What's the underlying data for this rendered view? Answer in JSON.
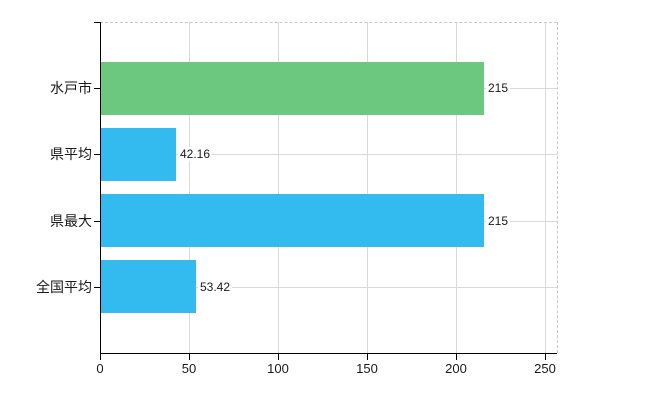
{
  "chart": {
    "background": "#ffffff",
    "axis_color": "#000000",
    "gridline_color": "#d9d9d9",
    "dashed_border_color": "#c8c8c8",
    "text_color": "#1a1a1a"
  },
  "chart_data": {
    "type": "bar",
    "orientation": "horizontal",
    "title": "",
    "categories": [
      "水戸市",
      "県平均",
      "県最大",
      "全国平均"
    ],
    "values": [
      215,
      42.16,
      215,
      53.42
    ],
    "value_labels": [
      "215",
      "42.16",
      "215",
      "53.42"
    ],
    "bar_colors": [
      "#6cc87e",
      "#33bbef",
      "#33bbef",
      "#33bbef"
    ],
    "xlabel": "",
    "ylabel": "",
    "xlim": [
      0,
      250
    ],
    "x_ticks": [
      0,
      50,
      100,
      150,
      200,
      250
    ],
    "x_tick_labels": [
      "0",
      "50",
      "100",
      "150",
      "200",
      "250"
    ],
    "grid": "on",
    "legend": "none",
    "plot_border": "dashed-top-right"
  }
}
